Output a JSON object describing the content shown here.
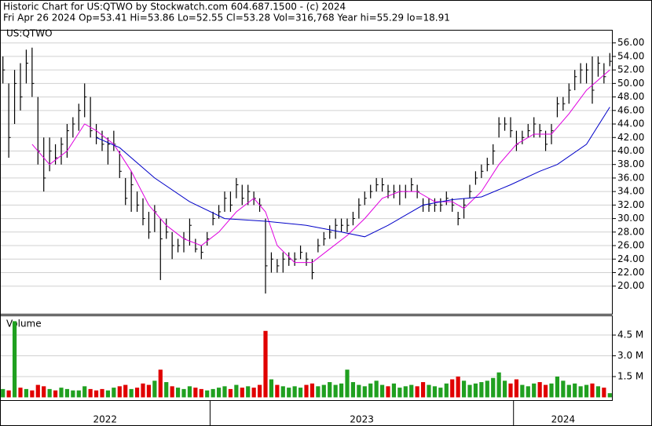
{
  "chart_data": {
    "type": "ohlc",
    "title": "Historic Chart for US:QTWO by Stockwatch.com 604.687.1500 - (c) 2024",
    "subtitle": "Fri Apr 26 2024  Op=53.41  Hi=53.86  Lo=52.55  Cl=53.28  Vol=316,768  Year hi=55.29  lo=18.91",
    "symbol": "US:QTWO",
    "xlim": [
      -0.5,
      104.5
    ],
    "x_dividers": [
      35.5,
      87.5
    ],
    "x_labels": [
      "2022",
      "2023",
      "2024"
    ],
    "ylim": [
      15.9,
      57.94
    ],
    "grid": true,
    "yticks": [
      {
        "value": 20,
        "label": "20.00"
      },
      {
        "value": 22,
        "label": "22.00"
      },
      {
        "value": 24,
        "label": "24.00"
      },
      {
        "value": 26,
        "label": "26.00"
      },
      {
        "value": 28,
        "label": "28.00"
      },
      {
        "value": 30,
        "label": "30.00"
      },
      {
        "value": 32,
        "label": "32.00"
      },
      {
        "value": 34,
        "label": "34.00"
      },
      {
        "value": 36,
        "label": "36.00"
      },
      {
        "value": 38,
        "label": "38.00"
      },
      {
        "value": 40,
        "label": "40.00"
      },
      {
        "value": 42,
        "label": "42.00"
      },
      {
        "value": 44,
        "label": "44.00"
      },
      {
        "value": 46,
        "label": "46.00"
      },
      {
        "value": 48,
        "label": "48.00"
      },
      {
        "value": 50,
        "label": "50.00"
      },
      {
        "value": 52,
        "label": "52.00"
      },
      {
        "value": 54,
        "label": "54.00"
      },
      {
        "value": 56,
        "label": "56.00"
      }
    ],
    "price": {
      "color": "#000000",
      "high": [
        54,
        50,
        52,
        53,
        55,
        55.3,
        48,
        42,
        42,
        41,
        42,
        44,
        45,
        47,
        50,
        48,
        44,
        43,
        42,
        43,
        40,
        36,
        37,
        34,
        33,
        31,
        32,
        30,
        30,
        28,
        27,
        28,
        30,
        27,
        26,
        28,
        31,
        32,
        34,
        34,
        36,
        35,
        35,
        34,
        33,
        30,
        25,
        24,
        25,
        25,
        25,
        26,
        25,
        24,
        27,
        28,
        29,
        30,
        30,
        30,
        31,
        33,
        34,
        35,
        36,
        36,
        35,
        35,
        35,
        35,
        36,
        35,
        33,
        33,
        33,
        33,
        34,
        33,
        31,
        33,
        35,
        37,
        38,
        39,
        41,
        45,
        45,
        45,
        43,
        43,
        44,
        45,
        44,
        43,
        44,
        48,
        48,
        50,
        52,
        53,
        53,
        54,
        54,
        53,
        54.5
      ],
      "low": [
        50,
        39,
        44,
        46,
        50,
        48,
        38,
        34,
        37,
        38,
        38,
        39,
        42,
        43,
        45,
        42,
        41,
        40,
        38,
        40,
        36,
        32,
        31,
        31,
        29,
        27,
        28,
        20.9,
        27,
        24,
        25,
        25,
        26,
        25,
        24,
        26,
        29,
        30,
        31,
        31,
        33,
        32,
        32,
        32,
        31,
        18.9,
        22,
        22,
        22,
        23,
        23,
        24,
        23,
        21,
        25,
        26,
        27,
        27,
        28,
        28,
        29,
        30,
        32,
        33,
        34,
        34,
        33,
        33,
        32,
        33,
        34,
        33,
        31,
        31,
        31,
        31,
        32,
        31,
        29,
        30,
        33,
        35,
        36,
        37,
        38,
        42,
        43,
        42,
        40,
        41,
        42,
        42,
        42,
        40,
        41,
        45,
        46,
        47,
        49,
        50,
        50,
        47,
        51,
        50,
        52.55
      ],
      "close": [
        52,
        42,
        50,
        48,
        53,
        50,
        40,
        36,
        40,
        39,
        41,
        43,
        44,
        46,
        48,
        43,
        42,
        41,
        41,
        41,
        37,
        33,
        35,
        32,
        30,
        28,
        31,
        27,
        28,
        26,
        26,
        27,
        29,
        25.5,
        25,
        27,
        30,
        31,
        33,
        32,
        35,
        33,
        34,
        33,
        32,
        23,
        24,
        23,
        24,
        24,
        24,
        25,
        24,
        22,
        26,
        27,
        28,
        29,
        29,
        29,
        30,
        32,
        33,
        34,
        35,
        35,
        34,
        34,
        34,
        34,
        35,
        34,
        32,
        32,
        32,
        32,
        33,
        32,
        30,
        32,
        34,
        36,
        37,
        38,
        40,
        44,
        44,
        43,
        41,
        42,
        43,
        44,
        43,
        41,
        43,
        47,
        47,
        49,
        51,
        52,
        52,
        49,
        53,
        51,
        53.28
      ]
    },
    "moving_averages": [
      {
        "color": "#e000e0",
        "x": [
          5,
          8,
          11,
          14,
          16,
          19,
          22,
          25,
          28,
          31,
          34,
          37,
          40,
          43,
          45,
          47,
          50,
          53,
          56,
          59,
          62,
          65,
          68,
          71,
          74,
          77,
          79,
          82,
          85,
          88,
          91,
          94,
          97,
          100,
          102,
          104
        ],
        "values": [
          41,
          38,
          40,
          44,
          43,
          41,
          37,
          32,
          29,
          27,
          26,
          28,
          31,
          33,
          31,
          26,
          23.5,
          23.5,
          25.5,
          27.5,
          30,
          33,
          34,
          34,
          32.5,
          32.5,
          31.5,
          34,
          38,
          41,
          42.5,
          42.5,
          45.5,
          49,
          50.5,
          52
        ]
      },
      {
        "color": "#0000c8",
        "x": [
          16,
          20,
          26,
          32,
          38,
          45,
          52,
          58,
          62,
          66,
          72,
          77,
          82,
          87,
          92,
          95,
          100,
          104
        ],
        "values": [
          42,
          40.5,
          36,
          32.5,
          30,
          29.6,
          29,
          28,
          27.3,
          29,
          32,
          32.8,
          33.2,
          35,
          37,
          38,
          41,
          46.5
        ]
      }
    ],
    "volume": {
      "type": "bar",
      "title": "Volume",
      "up_color": "#20a020",
      "down_color": "#e00000",
      "ylim": [
        -0.2,
        5.92
      ],
      "yticks": [
        {
          "value": 1.5,
          "label": "1.5 M"
        },
        {
          "value": 3.0,
          "label": "3.0 M"
        },
        {
          "value": 4.5,
          "label": "4.5 M"
        }
      ],
      "values": [
        0.6,
        0.5,
        5.5,
        0.7,
        0.6,
        0.5,
        0.9,
        0.8,
        0.6,
        0.5,
        0.7,
        0.6,
        0.5,
        0.5,
        0.8,
        0.6,
        0.5,
        0.6,
        0.5,
        0.7,
        0.8,
        0.9,
        0.6,
        0.7,
        1.0,
        0.9,
        1.2,
        2.0,
        1.1,
        0.8,
        0.7,
        0.6,
        0.8,
        0.7,
        0.6,
        0.5,
        0.6,
        0.7,
        0.8,
        0.6,
        0.9,
        0.7,
        0.8,
        0.7,
        0.9,
        4.8,
        1.3,
        0.9,
        0.8,
        0.7,
        0.8,
        0.7,
        0.9,
        1.0,
        0.8,
        0.9,
        1.1,
        0.9,
        1.0,
        2.0,
        1.1,
        0.9,
        0.8,
        1.0,
        1.2,
        0.9,
        0.8,
        1.0,
        0.7,
        0.8,
        0.9,
        0.8,
        1.1,
        0.9,
        0.8,
        0.7,
        1.0,
        1.3,
        1.5,
        1.2,
        0.9,
        1.0,
        1.1,
        1.2,
        1.4,
        1.8,
        1.2,
        1.0,
        1.3,
        0.9,
        0.8,
        1.0,
        1.1,
        0.9,
        1.0,
        1.5,
        1.2,
        0.9,
        1.0,
        0.8,
        0.9,
        1.0,
        0.8,
        0.7,
        0.3
      ]
    }
  }
}
